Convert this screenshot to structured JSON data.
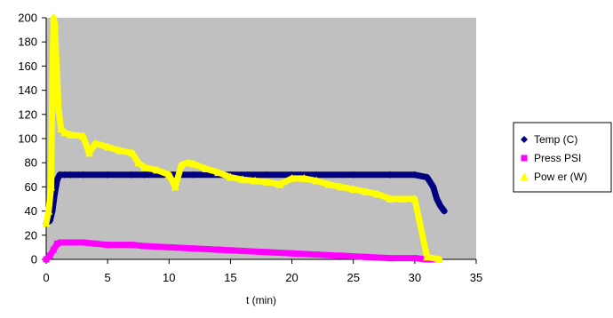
{
  "chart_data": {
    "type": "scatter",
    "title": "",
    "xlabel": "t (min)",
    "ylabel": "",
    "xlim": [
      0,
      35
    ],
    "ylim": [
      0,
      200
    ],
    "xticks": [
      0,
      5,
      10,
      15,
      20,
      25,
      30,
      35
    ],
    "yticks": [
      0,
      20,
      40,
      60,
      80,
      100,
      120,
      140,
      160,
      180,
      200
    ],
    "plot_background": "#c0c0c0",
    "grid": false,
    "legend_position": "right",
    "series": [
      {
        "name": "Temp (C)",
        "color": "#000080",
        "marker": "diamond",
        "x": [
          0,
          0.3,
          0.5,
          0.7,
          0.9,
          1.1,
          1.5,
          2,
          3,
          5,
          7,
          8,
          10,
          12,
          15,
          18,
          20,
          22,
          25,
          28,
          30,
          31,
          31.5,
          31.8,
          32.1,
          32.4
        ],
        "y": [
          30,
          32,
          40,
          55,
          66,
          70,
          70,
          70,
          70,
          70,
          70,
          70,
          70,
          70,
          70,
          70,
          70,
          70,
          70,
          70,
          70,
          68,
          60,
          50,
          44,
          40
        ]
      },
      {
        "name": "Press PSI",
        "color": "#ff00ff",
        "marker": "square",
        "x": [
          0,
          0.3,
          0.6,
          0.9,
          1.2,
          2,
          3,
          4,
          5,
          7,
          8,
          10,
          12,
          14,
          16,
          18,
          20,
          22,
          24,
          26,
          28,
          30,
          31,
          31.5
        ],
        "y": [
          0,
          3,
          8,
          13,
          14,
          14,
          14,
          13,
          12,
          12,
          11,
          10,
          9,
          8,
          7,
          6,
          5,
          4,
          3,
          2,
          1,
          1,
          0,
          0
        ]
      },
      {
        "name": "Pow er (W)",
        "color": "#ffff00",
        "marker": "triangle",
        "x": [
          0,
          0.2,
          0.4,
          0.5,
          0.6,
          0.7,
          0.8,
          0.9,
          1.0,
          1.2,
          1.5,
          2,
          3,
          3.5,
          4,
          5,
          6,
          7,
          7.5,
          8,
          9,
          10,
          10.5,
          11,
          11.5,
          12,
          13,
          14,
          15,
          16,
          17,
          18,
          19,
          20,
          21,
          22,
          23,
          24,
          25,
          26,
          27,
          28,
          29,
          30,
          31,
          32
        ],
        "y": [
          30,
          40,
          60,
          150,
          200,
          195,
          170,
          150,
          125,
          108,
          105,
          103,
          102,
          88,
          96,
          93,
          90,
          88,
          80,
          76,
          74,
          70,
          60,
          78,
          80,
          79,
          75,
          72,
          68,
          66,
          65,
          64,
          62,
          67,
          67,
          65,
          62,
          60,
          58,
          56,
          54,
          50,
          50,
          50,
          2,
          0
        ]
      }
    ]
  }
}
